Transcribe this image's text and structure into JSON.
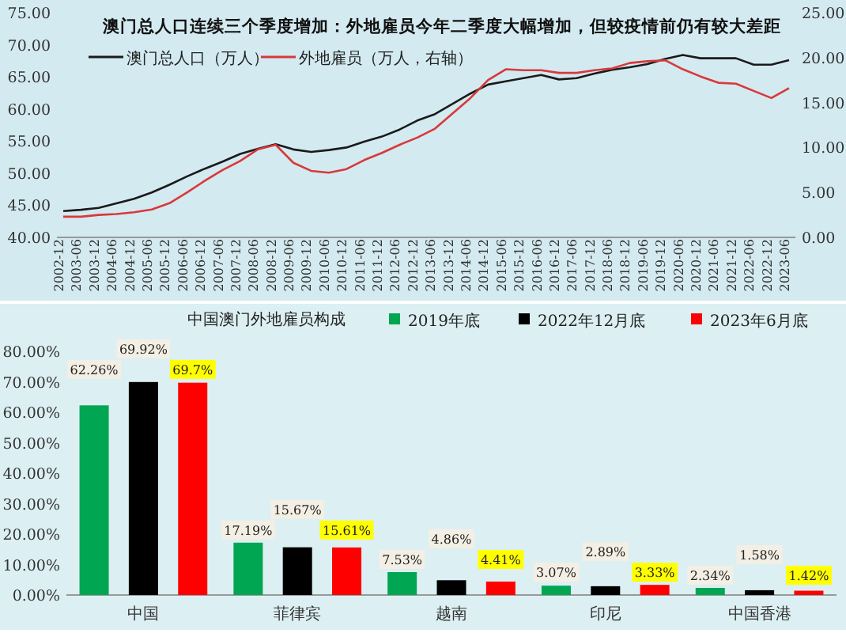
{
  "chart_data": [
    {
      "type": "line",
      "title": "澳门总人口连续三个季度增加：外地雇员今年二季度大幅增加，但较疫情前仍有较大差距",
      "categories": [
        "2002-12",
        "2003-06",
        "2003-12",
        "2004-06",
        "2004-12",
        "2005-06",
        "2005-12",
        "2006-06",
        "2006-12",
        "2007-06",
        "2007-12",
        "2008-06",
        "2008-12",
        "2009-06",
        "2009-12",
        "2010-06",
        "2010-12",
        "2011-06",
        "2011-12",
        "2012-06",
        "2012-12",
        "2013-06",
        "2013-12",
        "2014-06",
        "2014-12",
        "2015-06",
        "2015-12",
        "2016-06",
        "2016-12",
        "2017-06",
        "2017-12",
        "2018-06",
        "2018-12",
        "2019-06",
        "2019-12",
        "2020-06",
        "2020-12",
        "2021-06",
        "2021-12",
        "2022-06",
        "2022-12",
        "2023-06"
      ],
      "series": [
        {
          "name": "澳门总人口（万人）",
          "color": "#1a1a1a",
          "values": [
            44.1,
            44.3,
            44.6,
            45.3,
            46.0,
            47.0,
            48.2,
            49.5,
            50.7,
            51.8,
            53.0,
            53.8,
            54.5,
            53.7,
            53.3,
            53.6,
            54.0,
            54.9,
            55.7,
            56.8,
            58.2,
            59.2,
            60.8,
            62.4,
            63.8,
            64.3,
            64.8,
            65.3,
            64.6,
            64.8,
            65.5,
            66.1,
            66.5,
            67.0,
            67.8,
            68.4,
            67.9,
            67.9,
            67.9,
            66.9,
            66.9,
            67.6
          ]
        },
        {
          "name": "外地雇员（万人，右轴）",
          "color": "#d9383a",
          "axis": "y2",
          "values": [
            2.3,
            2.3,
            2.5,
            2.6,
            2.8,
            3.1,
            3.8,
            5.0,
            6.3,
            7.5,
            8.5,
            9.8,
            10.3,
            8.3,
            7.4,
            7.2,
            7.6,
            8.6,
            9.4,
            10.3,
            11.1,
            12.1,
            13.8,
            15.5,
            17.5,
            18.7,
            18.6,
            18.6,
            18.3,
            18.3,
            18.6,
            18.8,
            19.4,
            19.6,
            19.7,
            18.7,
            17.9,
            17.2,
            17.1,
            16.3,
            15.5,
            16.6
          ]
        }
      ],
      "ylim": [
        40,
        75
      ],
      "yticks": [
        {
          "value": 40,
          "label": "40.00"
        },
        {
          "value": 45,
          "label": "45.00"
        },
        {
          "value": 50,
          "label": "50.00"
        },
        {
          "value": 55,
          "label": "55.00"
        },
        {
          "value": 60,
          "label": "60.00"
        },
        {
          "value": 65,
          "label": "65.00"
        },
        {
          "value": 70,
          "label": "70.00"
        },
        {
          "value": 75,
          "label": "75.00"
        }
      ],
      "y2lim": [
        0,
        25
      ],
      "y2ticks": [
        {
          "value": 0,
          "label": "0.00"
        },
        {
          "value": 5,
          "label": "5.00"
        },
        {
          "value": 10,
          "label": "10.00"
        },
        {
          "value": 15,
          "label": "15.00"
        },
        {
          "value": 20,
          "label": "20.00"
        },
        {
          "value": 25,
          "label": "25.00"
        }
      ],
      "legend": "top left"
    },
    {
      "type": "bar",
      "title": "中国澳门外地雇员构成",
      "categories": [
        "中国",
        "菲律宾",
        "越南",
        "印尼",
        "中国香港"
      ],
      "series": [
        {
          "name": "2019年底",
          "color": "#00a651",
          "values": [
            62.26,
            17.19,
            7.53,
            3.07,
            2.34
          ],
          "value_labels": [
            "62.26%",
            "17.19%",
            "7.53%",
            "3.07%",
            "2.34%"
          ]
        },
        {
          "name": "2022年12月底",
          "color": "#000000",
          "values": [
            69.92,
            15.67,
            4.86,
            2.89,
            1.58
          ],
          "value_labels": [
            "69.92%",
            "15.67%",
            "4.86%",
            "2.89%",
            "1.58%"
          ]
        },
        {
          "name": "2023年6月底",
          "color": "#ff0000",
          "values": [
            69.7,
            15.61,
            4.41,
            3.33,
            1.42
          ],
          "value_labels": [
            "69.7%",
            "15.61%",
            "4.41%",
            "3.33%",
            "1.42%"
          ]
        }
      ],
      "ylim": [
        0,
        80
      ],
      "yticks": [
        {
          "value": 0,
          "label": "0.00%"
        },
        {
          "value": 10,
          "label": "10.00%"
        },
        {
          "value": 20,
          "label": "20.00%"
        },
        {
          "value": 30,
          "label": "30.00%"
        },
        {
          "value": 40,
          "label": "40.00%"
        },
        {
          "value": 50,
          "label": "50.00%"
        },
        {
          "value": 60,
          "label": "60.00%"
        },
        {
          "value": 70,
          "label": "70.00%"
        },
        {
          "value": 80,
          "label": "80.00%"
        }
      ],
      "legend": "top right"
    }
  ]
}
